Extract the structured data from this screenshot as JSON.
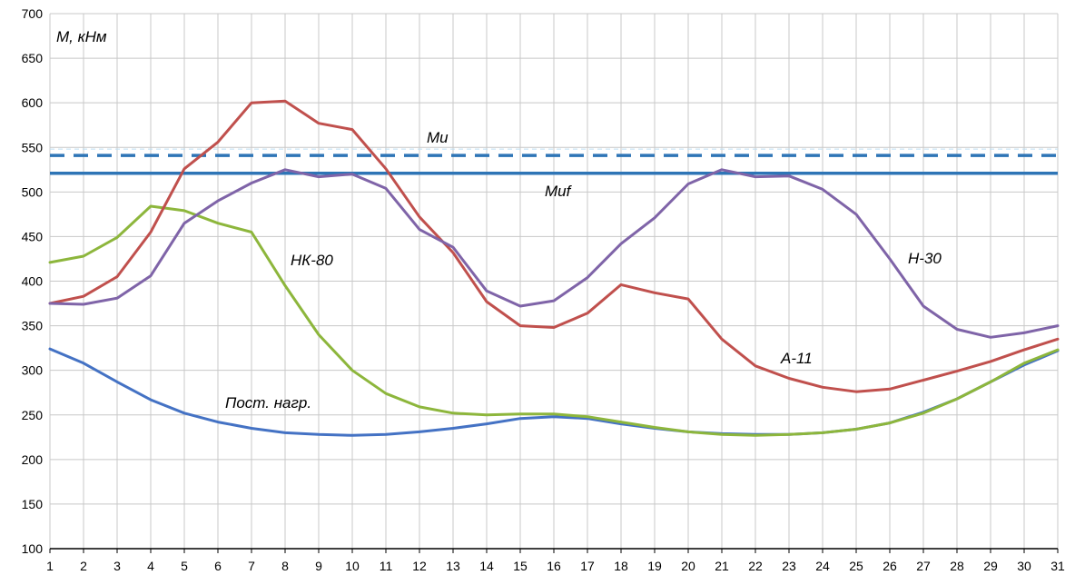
{
  "chart_data": {
    "type": "line",
    "ylabel": "M, кНм",
    "x": [
      1,
      2,
      3,
      4,
      5,
      6,
      7,
      8,
      9,
      10,
      11,
      12,
      13,
      14,
      15,
      16,
      17,
      18,
      19,
      20,
      21,
      22,
      23,
      24,
      25,
      26,
      27,
      28,
      29,
      30,
      31
    ],
    "xlim": [
      1,
      31
    ],
    "ylim": [
      100,
      700
    ],
    "yticks": [
      100,
      150,
      200,
      250,
      300,
      350,
      400,
      450,
      500,
      550,
      600,
      650,
      700
    ],
    "grid": true,
    "series": [
      {
        "name": "Пост. нагр.",
        "color": "#4472C4",
        "values": [
          324,
          308,
          287,
          267,
          252,
          242,
          235,
          230,
          228,
          227,
          228,
          231,
          235,
          240,
          246,
          248,
          246,
          240,
          235,
          231,
          229,
          228,
          228,
          230,
          234,
          241,
          253,
          268,
          287,
          306,
          322
        ]
      },
      {
        "name": "НК-80",
        "color": "#8DB63C",
        "values": [
          421,
          428,
          449,
          484,
          479,
          465,
          455,
          395,
          340,
          300,
          274,
          259,
          252,
          250,
          251,
          251,
          248,
          242,
          236,
          231,
          228,
          227,
          228,
          230,
          234,
          241,
          252,
          268,
          287,
          308,
          323
        ]
      },
      {
        "name": "А-11",
        "color": "#C0504D",
        "values": [
          375,
          383,
          405,
          455,
          526,
          556,
          600,
          602,
          577,
          570,
          526,
          472,
          432,
          377,
          350,
          348,
          364,
          396,
          387,
          380,
          335,
          305,
          291,
          281,
          276,
          279,
          289,
          299,
          310,
          323,
          335
        ]
      },
      {
        "name": "Н-30",
        "color": "#7F64A8",
        "values": [
          375,
          374,
          381,
          406,
          465,
          490,
          510,
          525,
          517,
          520,
          504,
          458,
          438,
          389,
          372,
          378,
          404,
          442,
          471,
          509,
          525,
          517,
          518,
          503,
          475,
          425,
          372,
          346,
          337,
          342,
          350
        ]
      }
    ],
    "reference_lines": [
      {
        "name": "Mu",
        "value": 541,
        "style": "dashed",
        "color": "#2E75B6"
      },
      {
        "name": "Muf",
        "value": 521,
        "style": "solid",
        "color": "#2E75B6"
      }
    ]
  }
}
